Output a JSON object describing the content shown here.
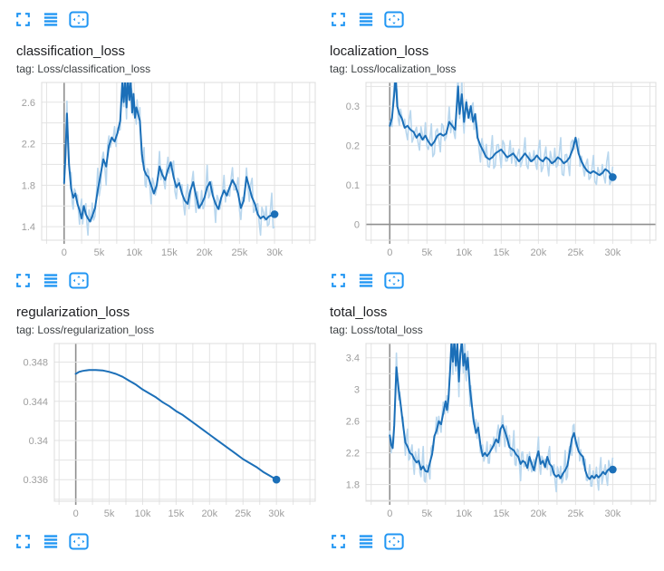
{
  "colors": {
    "icon_blue": "#2196f3",
    "line_smoothed": "#1b6fb8",
    "line_raw": "#b9d7ee",
    "grid": "#e3e3e3",
    "grid_zero": "#8f8f8f",
    "plot_border": "#dcdcdc",
    "axis_text": "#9e9e9e",
    "title_text": "#202124",
    "tag_text": "#3c4043"
  },
  "toolbar": {
    "icons": [
      "fullscreen",
      "data-list",
      "fit-domain-to-data"
    ]
  },
  "cards": [
    {
      "title": "classification_loss",
      "tag": "tag: Loss/classification_loss"
    },
    {
      "title": "localization_loss",
      "tag": "tag: Loss/localization_loss"
    },
    {
      "title": "regularization_loss",
      "tag": "tag: Loss/regularization_loss"
    },
    {
      "title": "total_loss",
      "tag": "tag: Loss/total_loss"
    }
  ],
  "chart_data": [
    {
      "type": "line",
      "title": "classification_loss",
      "tag": "Loss/classification_loss",
      "x_unit": "steps (thousands)",
      "legend": [
        "raw",
        "smoothed"
      ],
      "x_domain": [
        -3.2,
        35.8
      ],
      "y_domain": [
        1.27,
        2.79
      ],
      "x_grid_step": 2.5,
      "y_grid_step": 0.2,
      "x_ticks": {
        "values": [
          0,
          5,
          10,
          15,
          20,
          25,
          30
        ],
        "labels": [
          "0",
          "5k",
          "10k",
          "15k",
          "20k",
          "25k",
          "30k"
        ]
      },
      "y_ticks": [
        "1.4",
        "1.8",
        "2.2",
        "2.6"
      ],
      "x": [
        0,
        0.2,
        0.4,
        0.7,
        1,
        1.3,
        1.6,
        1.9,
        2.2,
        2.5,
        2.8,
        3.1,
        3.4,
        3.7,
        4,
        4.4,
        4.8,
        5.2,
        5.6,
        6,
        6.4,
        6.8,
        7.2,
        7.6,
        8,
        8.3,
        8.5,
        8.7,
        8.9,
        9.1,
        9.3,
        9.5,
        9.7,
        9.9,
        10.1,
        10.3,
        10.5,
        10.8,
        11.1,
        11.4,
        11.7,
        12,
        12.4,
        12.8,
        13.2,
        13.6,
        14,
        14.4,
        14.8,
        15.2,
        15.6,
        16,
        16.4,
        16.8,
        17.2,
        17.6,
        18,
        18.4,
        18.8,
        19.2,
        19.6,
        20,
        20.4,
        20.8,
        21.2,
        21.6,
        22,
        22.4,
        22.8,
        23.2,
        23.6,
        24,
        24.4,
        24.8,
        25.2,
        25.6,
        26,
        26.4,
        26.8,
        27.2,
        27.6,
        28,
        28.4,
        28.8,
        29.2,
        29.6,
        30
      ],
      "smoothed": [
        1.82,
        2.1,
        2.49,
        2.0,
        1.77,
        1.68,
        1.72,
        1.62,
        1.56,
        1.48,
        1.6,
        1.52,
        1.48,
        1.45,
        1.5,
        1.58,
        1.75,
        1.9,
        2.05,
        1.98,
        2.18,
        2.26,
        2.22,
        2.3,
        2.42,
        2.79,
        2.6,
        2.82,
        2.55,
        2.85,
        2.62,
        2.8,
        2.5,
        2.68,
        2.45,
        2.55,
        2.5,
        2.42,
        2.1,
        1.95,
        1.9,
        1.88,
        1.8,
        1.72,
        1.8,
        1.98,
        1.9,
        1.85,
        1.95,
        2.02,
        1.88,
        1.78,
        1.82,
        1.72,
        1.65,
        1.62,
        1.75,
        1.83,
        1.7,
        1.58,
        1.62,
        1.68,
        1.78,
        1.83,
        1.7,
        1.62,
        1.57,
        1.68,
        1.75,
        1.7,
        1.78,
        1.85,
        1.8,
        1.72,
        1.58,
        1.65,
        1.88,
        1.78,
        1.68,
        1.62,
        1.52,
        1.48,
        1.5,
        1.47,
        1.5,
        1.51,
        1.52
      ],
      "raw_offsets": [
        0.06,
        -0.1,
        0.14,
        -0.05,
        0.18,
        -0.13,
        0.03,
        0.1,
        -0.16,
        0.22,
        -0.07,
        0.12,
        -0.19,
        0.05,
        0.15,
        -0.09,
        0.25,
        -0.14,
        0.08,
        -0.21,
        0.11,
        -0.04,
        0.17
      ],
      "noise_scale": 0.85,
      "end_dot": {
        "x": 30,
        "y": 1.52
      }
    },
    {
      "type": "line",
      "title": "localization_loss",
      "tag": "Loss/localization_loss",
      "x_unit": "steps (thousands)",
      "legend": [
        "raw",
        "smoothed"
      ],
      "x_domain": [
        -3.2,
        35.8
      ],
      "y_domain": [
        -0.04,
        0.36
      ],
      "x_grid_step": 2.5,
      "y_grid_step": 0.05,
      "x_ticks": {
        "values": [
          0,
          5,
          10,
          15,
          20,
          25,
          30
        ],
        "labels": [
          "0",
          "5k",
          "10k",
          "15k",
          "20k",
          "25k",
          "30k"
        ]
      },
      "y_ticks": [
        "0",
        "0.1",
        "0.2",
        "0.3"
      ],
      "x": [
        0,
        0.3,
        0.6,
        0.8,
        1,
        1.3,
        1.6,
        2,
        2.4,
        2.8,
        3.2,
        3.6,
        4,
        4.4,
        4.8,
        5.2,
        5.6,
        6,
        6.4,
        6.8,
        7.2,
        7.6,
        8,
        8.4,
        8.8,
        9.2,
        9.4,
        9.7,
        10,
        10.3,
        10.6,
        10.9,
        11.2,
        11.5,
        11.8,
        12.2,
        12.6,
        13,
        13.4,
        13.8,
        14.2,
        14.6,
        15,
        15.4,
        15.8,
        16.2,
        16.6,
        17,
        17.4,
        17.8,
        18.2,
        18.6,
        19,
        19.4,
        19.8,
        20.2,
        20.6,
        21,
        21.4,
        21.8,
        22.2,
        22.6,
        23,
        23.4,
        23.8,
        24.2,
        24.6,
        25,
        25.4,
        25.8,
        26.2,
        26.6,
        27,
        27.4,
        27.8,
        28.2,
        28.6,
        29,
        29.4,
        29.8,
        30
      ],
      "smoothed": [
        0.25,
        0.27,
        0.33,
        0.38,
        0.3,
        0.28,
        0.27,
        0.245,
        0.25,
        0.24,
        0.235,
        0.22,
        0.23,
        0.215,
        0.225,
        0.21,
        0.2,
        0.21,
        0.225,
        0.23,
        0.225,
        0.23,
        0.26,
        0.25,
        0.24,
        0.35,
        0.28,
        0.33,
        0.26,
        0.31,
        0.27,
        0.3,
        0.26,
        0.28,
        0.22,
        0.2,
        0.185,
        0.17,
        0.165,
        0.17,
        0.18,
        0.185,
        0.19,
        0.18,
        0.17,
        0.175,
        0.18,
        0.17,
        0.16,
        0.17,
        0.18,
        0.17,
        0.16,
        0.165,
        0.175,
        0.165,
        0.16,
        0.17,
        0.165,
        0.155,
        0.16,
        0.17,
        0.165,
        0.155,
        0.16,
        0.17,
        0.19,
        0.22,
        0.18,
        0.16,
        0.145,
        0.135,
        0.13,
        0.135,
        0.13,
        0.125,
        0.13,
        0.14,
        0.135,
        0.125,
        0.12
      ],
      "raw_offsets": [
        0.06,
        -0.1,
        0.14,
        -0.05,
        0.18,
        -0.13,
        0.03,
        0.1,
        -0.16,
        0.22,
        -0.07,
        0.12,
        -0.19,
        0.05,
        0.15,
        -0.09,
        0.25,
        -0.14,
        0.08,
        -0.21,
        0.11,
        -0.04,
        0.17
      ],
      "noise_scale": 0.22,
      "end_dot": {
        "x": 30,
        "y": 0.12
      }
    },
    {
      "type": "line",
      "title": "regularization_loss",
      "tag": "Loss/regularization_loss",
      "x_unit": "steps (thousands)",
      "legend": [
        "smoothed"
      ],
      "x_domain": [
        -3.2,
        35.8
      ],
      "y_domain": [
        0.3338,
        0.3499
      ],
      "x_grid_step": 2.5,
      "y_grid_step": 0.002,
      "x_ticks": {
        "values": [
          0,
          5,
          10,
          15,
          20,
          25,
          30
        ],
        "labels": [
          "0",
          "5k",
          "10k",
          "15k",
          "20k",
          "25k",
          "30k"
        ]
      },
      "y_ticks": [
        "0.336",
        "0.34",
        "0.344",
        "0.348"
      ],
      "x": [
        0,
        0.5,
        1,
        1.5,
        2,
        2.5,
        3,
        4,
        5,
        6,
        7,
        8,
        9,
        10,
        11,
        12,
        13,
        14,
        15,
        16,
        17,
        18,
        19,
        20,
        21,
        22,
        23,
        24,
        25,
        26,
        27,
        28,
        29,
        30
      ],
      "smoothed": [
        0.3468,
        0.347,
        0.3471,
        0.34715,
        0.3472,
        0.3472,
        0.3472,
        0.34715,
        0.347,
        0.3468,
        0.3465,
        0.3461,
        0.3457,
        0.3452,
        0.3448,
        0.3444,
        0.3439,
        0.3435,
        0.343,
        0.3426,
        0.3421,
        0.3416,
        0.3411,
        0.3406,
        0.3401,
        0.3396,
        0.3391,
        0.3386,
        0.3381,
        0.3377,
        0.3373,
        0.3368,
        0.3364,
        0.336
      ],
      "raw_offsets": null,
      "noise_scale": 0,
      "end_dot": {
        "x": 30,
        "y": 0.336
      }
    },
    {
      "type": "line",
      "title": "total_loss",
      "tag": "Loss/total_loss",
      "x_unit": "steps (thousands)",
      "legend": [
        "raw",
        "smoothed"
      ],
      "x_domain": [
        -3.2,
        35.8
      ],
      "y_domain": [
        1.59,
        3.58
      ],
      "x_grid_step": 2.5,
      "y_grid_step": 0.2,
      "x_ticks": {
        "values": [
          0,
          5,
          10,
          15,
          20,
          25,
          30
        ],
        "labels": [
          "0",
          "5k",
          "10k",
          "15k",
          "20k",
          "25k",
          "30k"
        ]
      },
      "y_ticks": [
        "1.8",
        "2.2",
        "2.6",
        "3",
        "3.4"
      ],
      "x": [
        0,
        0.2,
        0.4,
        0.6,
        0.9,
        1.2,
        1.5,
        1.8,
        2.1,
        2.4,
        2.7,
        3,
        3.3,
        3.6,
        3.9,
        4.2,
        4.5,
        4.8,
        5.1,
        5.4,
        5.7,
        6,
        6.3,
        6.6,
        6.9,
        7.2,
        7.5,
        7.7,
        7.9,
        8.1,
        8.3,
        8.5,
        8.7,
        8.9,
        9.1,
        9.3,
        9.5,
        9.7,
        9.9,
        10.1,
        10.3,
        10.5,
        10.8,
        11,
        11.3,
        11.6,
        11.9,
        12.2,
        12.5,
        12.8,
        13.1,
        13.4,
        13.7,
        14,
        14.3,
        14.6,
        14.9,
        15.2,
        15.5,
        15.8,
        16.1,
        16.4,
        16.7,
        17,
        17.3,
        17.6,
        17.9,
        18.2,
        18.5,
        18.8,
        19.1,
        19.4,
        19.7,
        20,
        20.3,
        20.6,
        20.9,
        21.2,
        21.5,
        21.8,
        22.1,
        22.4,
        22.7,
        23,
        23.3,
        23.6,
        23.9,
        24.2,
        24.5,
        24.8,
        25.1,
        25.4,
        25.7,
        26,
        26.3,
        26.6,
        26.9,
        27.2,
        27.5,
        27.8,
        28.1,
        28.4,
        28.7,
        29,
        29.3,
        29.6,
        30
      ],
      "smoothed": [
        2.42,
        2.3,
        2.26,
        2.55,
        3.28,
        3.0,
        2.78,
        2.55,
        2.33,
        2.28,
        2.2,
        2.18,
        2.12,
        2.08,
        2.1,
        1.99,
        2.03,
        1.97,
        1.96,
        2.08,
        2.18,
        2.41,
        2.48,
        2.6,
        2.56,
        2.7,
        2.85,
        2.74,
        2.89,
        3.2,
        3.6,
        3.35,
        3.62,
        3.3,
        3.58,
        3.1,
        3.45,
        3.62,
        3.3,
        3.45,
        3.25,
        3.4,
        3.0,
        2.84,
        2.6,
        2.45,
        2.52,
        2.3,
        2.16,
        2.2,
        2.16,
        2.2,
        2.25,
        2.3,
        2.37,
        2.33,
        2.5,
        2.55,
        2.47,
        2.38,
        2.27,
        2.25,
        2.23,
        2.18,
        2.15,
        2.06,
        2.1,
        2.08,
        2.01,
        2.15,
        2.06,
        1.98,
        2.12,
        2.22,
        2.06,
        2.1,
        2.02,
        2.15,
        2.06,
        2.03,
        1.93,
        1.9,
        1.92,
        1.88,
        1.94,
        1.98,
        2.04,
        2.2,
        2.38,
        2.45,
        2.32,
        2.22,
        2.18,
        2.15,
        1.98,
        1.9,
        1.87,
        1.91,
        1.88,
        1.92,
        1.89,
        1.92,
        1.96,
        1.93,
        1.98,
        2.0,
        1.99
      ],
      "raw_offsets": [
        0.06,
        -0.1,
        0.14,
        -0.05,
        0.18,
        -0.13,
        0.03,
        0.1,
        -0.16,
        0.22,
        -0.07,
        0.12,
        -0.19,
        0.05,
        0.15,
        -0.09,
        0.25,
        -0.14,
        0.08,
        -0.21,
        0.11,
        -0.04,
        0.17
      ],
      "noise_scale": 1.0,
      "end_dot": {
        "x": 30,
        "y": 1.99
      }
    }
  ]
}
